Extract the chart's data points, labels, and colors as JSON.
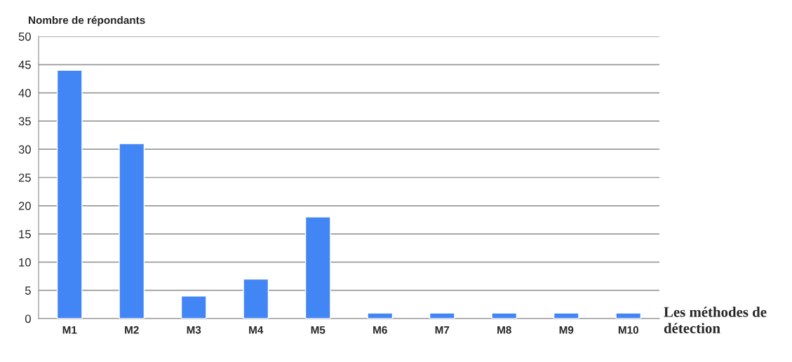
{
  "chart_data": {
    "type": "bar",
    "ylabel": "Nombre de répondants",
    "xlabel": "Les méthodes de détection",
    "categories": [
      "M1",
      "M2",
      "M3",
      "M4",
      "M5",
      "M6",
      "M7",
      "M8",
      "M9",
      "M10"
    ],
    "values": [
      44,
      31,
      4,
      7,
      18,
      1,
      1,
      1,
      1,
      1
    ],
    "color": "#4285f4",
    "ylim": [
      0,
      50
    ],
    "yticks": [
      0,
      5,
      10,
      15,
      20,
      25,
      30,
      35,
      40,
      45,
      50
    ],
    "grid": "y",
    "legend": false
  }
}
